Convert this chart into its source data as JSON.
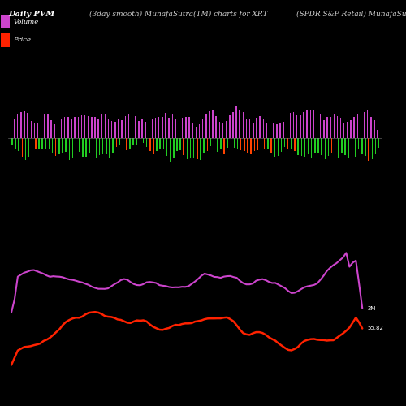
{
  "title_left": "Daily PVM",
  "title_center": "(3day smooth) MunafaSutra(TM) charts for XRT",
  "title_right": "(SPDR S&P Retail) MunafaSutra.com",
  "legend_volume_color": "#cc44cc",
  "legend_price_color": "#ff2200",
  "background_color": "#000000",
  "label_2M": "2M",
  "label_price": "55.82",
  "n_bars": 110,
  "price_line_color": "#ff2200",
  "volume_line_color": "#cc44cc",
  "green_bar_color": "#22cc22",
  "red_bar_color": "#ff4400",
  "purple_bar_color": "#cc44cc"
}
